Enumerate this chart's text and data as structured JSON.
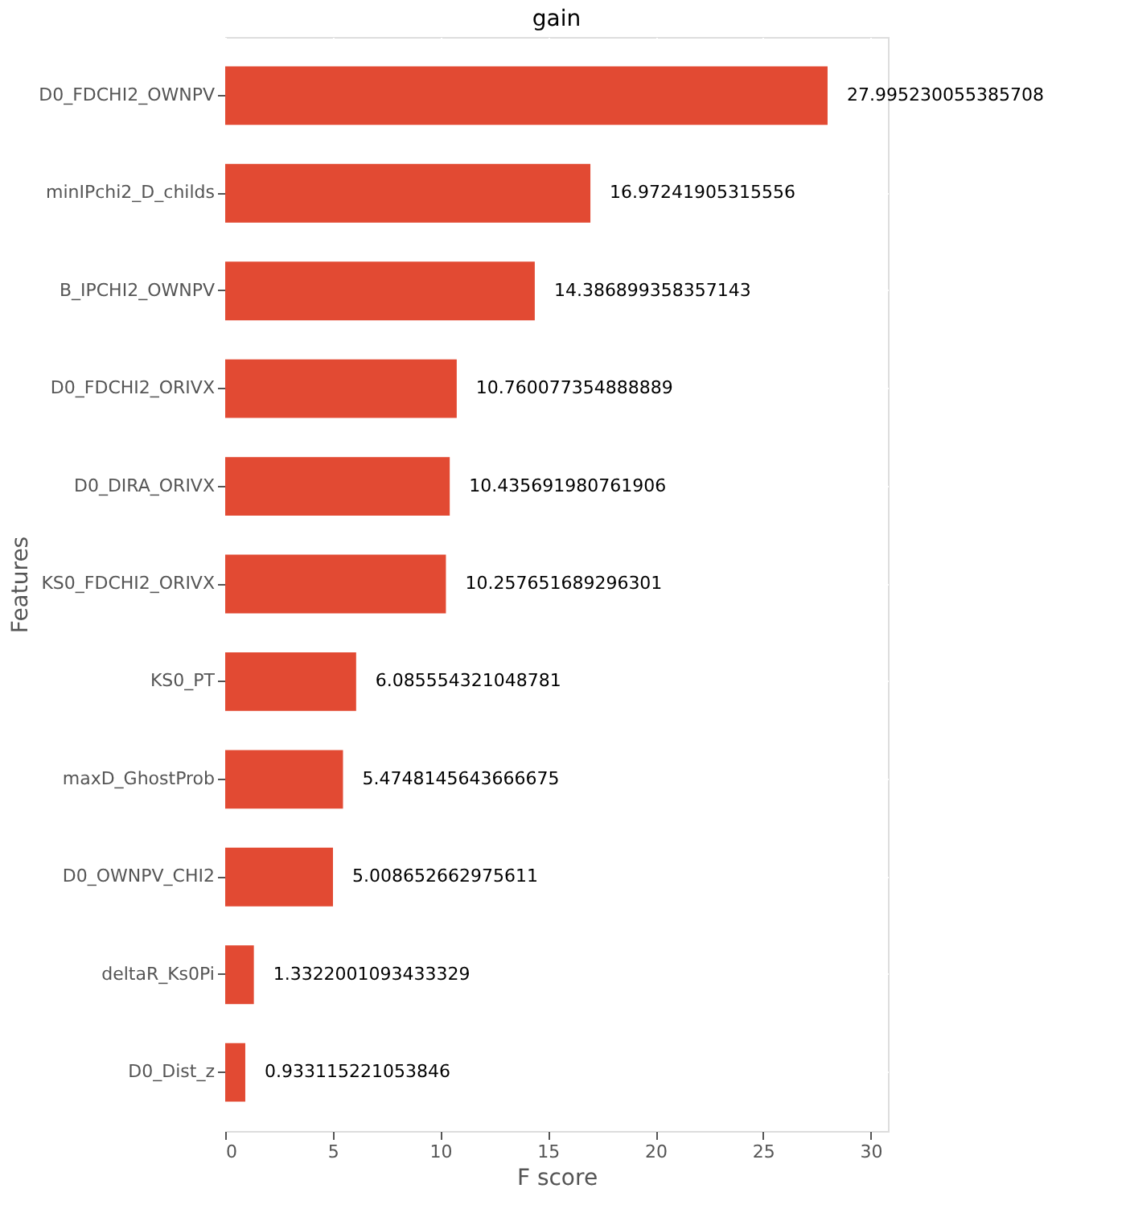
{
  "chart_data": {
    "type": "bar",
    "orientation": "horizontal",
    "title": "gain",
    "xlabel": "F score",
    "ylabel": "Features",
    "categories": [
      "D0_FDCHI2_OWNPV",
      "minIPchi2_D_childs",
      "B_IPCHI2_OWNPV",
      "D0_FDCHI2_ORIVX",
      "D0_DIRA_ORIVX",
      "KS0_FDCHI2_ORIVX",
      "KS0_PT",
      "maxD_GhostProb",
      "D0_OWNPV_CHI2",
      "deltaR_Ks0Pi",
      "D0_Dist_z"
    ],
    "values": [
      27.995230055385708,
      16.97241905315556,
      14.386899358357143,
      10.760077354888889,
      10.435691980761906,
      10.257651689296301,
      6.085554321048781,
      5.4748145643666675,
      5.008652662975611,
      1.3322001093433329,
      0.933115221053846
    ],
    "color": "#e24a33",
    "xlim": [
      0,
      30.8
    ],
    "xticks": [
      0,
      5,
      10,
      15,
      20,
      25,
      30
    ],
    "grid": true,
    "data_labels": true
  }
}
